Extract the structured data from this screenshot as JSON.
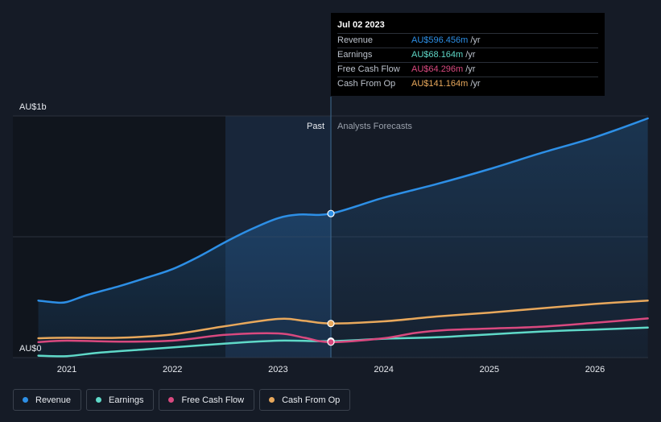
{
  "chart_data": {
    "type": "line",
    "x_ticks": [
      "2021",
      "2022",
      "2023",
      "2024",
      "2025",
      "2026"
    ],
    "y_ticks": [
      "AU$0",
      "AU$1b"
    ],
    "ylim": [
      0,
      1000
    ],
    "divider_date": 2023.5,
    "past_label": "Past",
    "forecast_label": "Analysts Forecasts",
    "series": [
      {
        "name": "Revenue",
        "color": "#2d8fe6",
        "points": [
          [
            2020.73,
            236
          ],
          [
            2020.9,
            228
          ],
          [
            2021.0,
            230
          ],
          [
            2021.2,
            260
          ],
          [
            2021.5,
            296
          ],
          [
            2021.75,
            330
          ],
          [
            2022.0,
            366
          ],
          [
            2022.25,
            418
          ],
          [
            2022.5,
            478
          ],
          [
            2022.75,
            532
          ],
          [
            2023.0,
            577
          ],
          [
            2023.2,
            592
          ],
          [
            2023.5,
            596
          ],
          [
            2024.0,
            662
          ],
          [
            2024.5,
            718
          ],
          [
            2025.0,
            780
          ],
          [
            2025.5,
            848
          ],
          [
            2026.0,
            912
          ],
          [
            2026.5,
            990
          ]
        ]
      },
      {
        "name": "Earnings",
        "color": "#5fd9c8",
        "points": [
          [
            2020.73,
            8
          ],
          [
            2021.0,
            6
          ],
          [
            2021.3,
            20
          ],
          [
            2021.75,
            34
          ],
          [
            2022.0,
            42
          ],
          [
            2022.5,
            58
          ],
          [
            2023.0,
            70
          ],
          [
            2023.5,
            68
          ],
          [
            2024.0,
            78
          ],
          [
            2024.5,
            84
          ],
          [
            2025.0,
            96
          ],
          [
            2025.5,
            108
          ],
          [
            2026.0,
            116
          ],
          [
            2026.5,
            124
          ]
        ]
      },
      {
        "name": "Free Cash Flow",
        "color": "#d9497f",
        "points": [
          [
            2020.73,
            64
          ],
          [
            2021.0,
            70
          ],
          [
            2021.5,
            66
          ],
          [
            2022.0,
            70
          ],
          [
            2022.5,
            94
          ],
          [
            2023.0,
            100
          ],
          [
            2023.25,
            82
          ],
          [
            2023.5,
            64
          ],
          [
            2024.0,
            80
          ],
          [
            2024.3,
            102
          ],
          [
            2024.6,
            114
          ],
          [
            2025.0,
            120
          ],
          [
            2025.5,
            128
          ],
          [
            2026.0,
            144
          ],
          [
            2026.5,
            162
          ]
        ]
      },
      {
        "name": "Cash From Op",
        "color": "#e8a85c",
        "points": [
          [
            2020.73,
            80
          ],
          [
            2021.0,
            82
          ],
          [
            2021.5,
            82
          ],
          [
            2022.0,
            96
          ],
          [
            2022.5,
            130
          ],
          [
            2023.0,
            160
          ],
          [
            2023.25,
            152
          ],
          [
            2023.5,
            141
          ],
          [
            2024.0,
            150
          ],
          [
            2024.5,
            170
          ],
          [
            2025.0,
            186
          ],
          [
            2025.5,
            204
          ],
          [
            2026.0,
            222
          ],
          [
            2026.5,
            236
          ]
        ]
      }
    ]
  },
  "tooltip": {
    "date": "Jul 02 2023",
    "unit": "/yr",
    "rows": [
      {
        "label": "Revenue",
        "value": "AU$596.456m",
        "color": "#2d8fe6"
      },
      {
        "label": "Earnings",
        "value": "AU$68.164m",
        "color": "#5fd9c8"
      },
      {
        "label": "Free Cash Flow",
        "value": "AU$64.296m",
        "color": "#d9497f"
      },
      {
        "label": "Cash From Op",
        "value": "AU$141.164m",
        "color": "#e8a85c"
      }
    ]
  },
  "legend": [
    {
      "label": "Revenue",
      "color": "#2d8fe6"
    },
    {
      "label": "Earnings",
      "color": "#5fd9c8"
    },
    {
      "label": "Free Cash Flow",
      "color": "#d9497f"
    },
    {
      "label": "Cash From Op",
      "color": "#e8a85c"
    }
  ]
}
